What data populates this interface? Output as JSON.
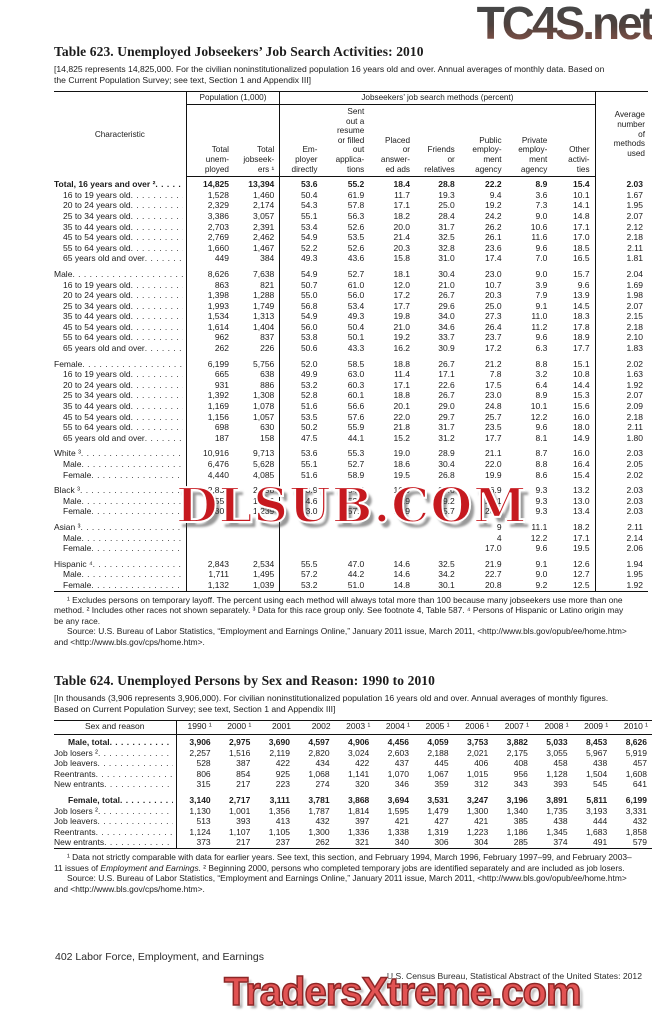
{
  "watermarks": {
    "top": "TC4S.net",
    "middle": "DLSUB.COM",
    "bottom": "TradersXtreme.com",
    "top_color_start": "#474747",
    "top_color_end": "#7d4f45",
    "middle_color": "#c6191f",
    "bottom_color": "#e25353"
  },
  "table623": {
    "title": "Table 623. Unemployed Jobseekers’ Job Search Activities: 2010",
    "headnote": "[14,825 represents 14,825,000. For the civilian noninstitutionalized population 16 years old and over. Annual averages of monthly data. Based on the Current Population Survey; see text, Section 1 and Appendix III]",
    "boxhead": {
      "stub": "Characteristic",
      "population_group": "Population (1,000)",
      "methods_group": "Jobseekers’ job search methods (percent)",
      "average": "Average|number|of|methods|used",
      "columns": [
        "Total|unem-|ployed",
        "Total|jobseek-|ers ¹",
        "Em-|ployer|directly",
        "Sent|out a|resume|or filled|out|applica-|tions",
        "Placed|or|answer-|ed ads",
        "Friends|or|relatives",
        "Public|employ-|ment|agency",
        "Private|employ-|ment|agency",
        "Other|activi-|ties"
      ]
    },
    "rows": [
      {
        "label": "Total, 16 years and over ²",
        "bold": true,
        "values": [
          "14,825",
          "13,394",
          "53.6",
          "55.2",
          "18.4",
          "28.8",
          "22.2",
          "8.9",
          "15.4",
          "2.03"
        ]
      },
      {
        "label": "16 to 19 years old",
        "indent": true,
        "values": [
          "1,528",
          "1,460",
          "50.4",
          "61.9",
          "11.7",
          "19.3",
          "9.4",
          "3.6",
          "10.1",
          "1.67"
        ]
      },
      {
        "label": "20 to 24 years old",
        "indent": true,
        "values": [
          "2,329",
          "2,174",
          "54.3",
          "57.8",
          "17.1",
          "25.0",
          "19.2",
          "7.3",
          "14.1",
          "1.95"
        ]
      },
      {
        "label": "25 to 34 years old",
        "indent": true,
        "values": [
          "3,386",
          "3,057",
          "55.1",
          "56.3",
          "18.2",
          "28.4",
          "24.2",
          "9.0",
          "14.8",
          "2.07"
        ]
      },
      {
        "label": "35 to 44 years old",
        "indent": true,
        "values": [
          "2,703",
          "2,391",
          "53.4",
          "52.6",
          "20.0",
          "31.7",
          "26.2",
          "10.6",
          "17.1",
          "2.12"
        ]
      },
      {
        "label": "45 to 54 years old",
        "indent": true,
        "values": [
          "2,769",
          "2,462",
          "54.9",
          "53.5",
          "21.4",
          "32.5",
          "26.1",
          "11.6",
          "17.0",
          "2.18"
        ]
      },
      {
        "label": "55 to 64 years old",
        "indent": true,
        "values": [
          "1,660",
          "1,467",
          "52.2",
          "52.6",
          "20.3",
          "32.8",
          "23.6",
          "9.6",
          "18.5",
          "2.11"
        ]
      },
      {
        "label": "65 years old and over",
        "indent": true,
        "values": [
          "449",
          "384",
          "49.3",
          "43.6",
          "15.8",
          "31.0",
          "17.4",
          "7.0",
          "16.5",
          "1.81"
        ]
      },
      {
        "label": "Male",
        "group": true,
        "values": [
          "8,626",
          "7,638",
          "54.9",
          "52.7",
          "18.1",
          "30.4",
          "23.0",
          "9.0",
          "15.7",
          "2.04"
        ]
      },
      {
        "label": "16 to 19 years old",
        "indent": true,
        "values": [
          "863",
          "821",
          "50.7",
          "61.0",
          "12.0",
          "21.0",
          "10.7",
          "3.9",
          "9.6",
          "1.69"
        ]
      },
      {
        "label": "20 to 24 years old",
        "indent": true,
        "values": [
          "1,398",
          "1,288",
          "55.0",
          "56.0",
          "17.2",
          "26.7",
          "20.3",
          "7.9",
          "13.9",
          "1.98"
        ]
      },
      {
        "label": "25 to 34 years old",
        "indent": true,
        "values": [
          "1,993",
          "1,749",
          "56.8",
          "53.4",
          "17.7",
          "29.6",
          "25.0",
          "9.1",
          "14.5",
          "2.07"
        ]
      },
      {
        "label": "35 to 44 years old",
        "indent": true,
        "values": [
          "1,534",
          "1,313",
          "54.9",
          "49.3",
          "19.8",
          "34.0",
          "27.3",
          "11.0",
          "18.3",
          "2.15"
        ]
      },
      {
        "label": "45 to 54 years old",
        "indent": true,
        "values": [
          "1,614",
          "1,404",
          "56.0",
          "50.4",
          "21.0",
          "34.6",
          "26.4",
          "11.2",
          "17.8",
          "2.18"
        ]
      },
      {
        "label": "55 to 64 years old",
        "indent": true,
        "values": [
          "962",
          "837",
          "53.8",
          "50.1",
          "19.2",
          "33.7",
          "23.7",
          "9.6",
          "18.9",
          "2.10"
        ]
      },
      {
        "label": "65 years old and over",
        "indent": true,
        "values": [
          "262",
          "226",
          "50.6",
          "43.3",
          "16.2",
          "30.9",
          "17.2",
          "6.3",
          "17.7",
          "1.83"
        ]
      },
      {
        "label": "Female",
        "group": true,
        "values": [
          "6,199",
          "5,756",
          "52.0",
          "58.5",
          "18.8",
          "26.7",
          "21.2",
          "8.8",
          "15.1",
          "2.02"
        ]
      },
      {
        "label": "16 to 19 years old",
        "indent": true,
        "values": [
          "665",
          "638",
          "49.9",
          "63.0",
          "11.4",
          "17.1",
          "7.8",
          "3.2",
          "10.8",
          "1.63"
        ]
      },
      {
        "label": "20 to 24 years old",
        "indent": true,
        "values": [
          "931",
          "886",
          "53.2",
          "60.3",
          "17.1",
          "22.6",
          "17.5",
          "6.4",
          "14.4",
          "1.92"
        ]
      },
      {
        "label": "25 to 34 years old",
        "indent": true,
        "values": [
          "1,392",
          "1,308",
          "52.8",
          "60.1",
          "18.8",
          "26.7",
          "23.0",
          "8.9",
          "15.3",
          "2.07"
        ]
      },
      {
        "label": "35 to 44 years old",
        "indent": true,
        "values": [
          "1,169",
          "1,078",
          "51.6",
          "56.6",
          "20.1",
          "29.0",
          "24.8",
          "10.1",
          "15.6",
          "2.09"
        ]
      },
      {
        "label": "45 to 54 years old",
        "indent": true,
        "values": [
          "1,156",
          "1,057",
          "53.5",
          "57.6",
          "22.0",
          "29.7",
          "25.7",
          "12.2",
          "16.0",
          "2.18"
        ]
      },
      {
        "label": "55 to 64 years old",
        "indent": true,
        "values": [
          "698",
          "630",
          "50.2",
          "55.9",
          "21.8",
          "31.7",
          "23.5",
          "9.6",
          "18.0",
          "2.11"
        ]
      },
      {
        "label": "65 years old and over",
        "indent": true,
        "values": [
          "187",
          "158",
          "47.5",
          "44.1",
          "15.2",
          "31.2",
          "17.7",
          "8.1",
          "14.9",
          "1.80"
        ]
      },
      {
        "label": "White ³",
        "group": true,
        "values": [
          "10,916",
          "9,713",
          "53.6",
          "55.3",
          "19.0",
          "28.9",
          "21.1",
          "8.7",
          "16.0",
          "2.03"
        ]
      },
      {
        "label": "Male",
        "indent": true,
        "values": [
          "6,476",
          "5,628",
          "55.1",
          "52.7",
          "18.6",
          "30.4",
          "22.0",
          "8.8",
          "16.4",
          "2.05"
        ]
      },
      {
        "label": "Female",
        "indent": true,
        "values": [
          "4,440",
          "4,085",
          "51.6",
          "58.9",
          "19.5",
          "26.8",
          "19.9",
          "8.6",
          "15.4",
          "2.02"
        ]
      },
      {
        "label": "Black ³",
        "group": true,
        "values": [
          "2,852",
          "2,698",
          "53.9",
          "54.4",
          "16.9",
          "27.6",
          "26.9",
          "9.3",
          "13.2",
          "2.03"
        ]
      },
      {
        "label": "Male",
        "indent": true,
        "values": [
          "1,550",
          "1,459",
          "54.6",
          "52.0",
          "16.9",
          "29.2",
          "27.1",
          "9.3",
          "13.0",
          "2.03"
        ]
      },
      {
        "label": "Female",
        "indent": true,
        "values": [
          "1,302",
          "1,239",
          "53.0",
          "57.2",
          "16.9",
          "25.7",
          "26.7",
          "9.3",
          "13.4",
          "2.03"
        ]
      },
      {
        "label": "Asian ³",
        "group": true,
        "values": [
          "",
          "",
          "",
          "",
          "",
          "",
          "9",
          "11.1",
          "18.2",
          "2.11"
        ]
      },
      {
        "label": "Male",
        "indent": true,
        "values": [
          "",
          "",
          "",
          "",
          "",
          "",
          "4",
          "12.2",
          "17.1",
          "2.14"
        ]
      },
      {
        "label": "Female",
        "indent": true,
        "values": [
          "",
          "",
          "",
          "",
          "",
          "",
          "17.0",
          "9.6",
          "19.5",
          "2.06"
        ]
      },
      {
        "label": "Hispanic ⁴",
        "group": true,
        "values": [
          "2,843",
          "2,534",
          "55.5",
          "47.0",
          "14.6",
          "32.5",
          "21.9",
          "9.1",
          "12.6",
          "1.94"
        ]
      },
      {
        "label": "Male",
        "indent": true,
        "values": [
          "1,711",
          "1,495",
          "57.2",
          "44.2",
          "14.6",
          "34.2",
          "22.7",
          "9.0",
          "12.7",
          "1.95"
        ]
      },
      {
        "label": "Female",
        "indent": true,
        "values": [
          "1,132",
          "1,039",
          "53.2",
          "51.0",
          "14.8",
          "30.1",
          "20.8",
          "9.2",
          "12.5",
          "1.92"
        ]
      }
    ],
    "footnote_segments": [
      {
        "text": "¹ Excludes persons on temporary layoff. The percent using each method will always total more than 100 because many jobseekers use more than one  method. ² Includes other races not shown separately. ³ Data for this race group only. See footnote 4, Table 587. ⁴ Persons of Hispanic or Latino origin may be any race."
      }
    ],
    "source_segments": [
      {
        "text": "Source: U.S. Bureau of Labor Statistics, “Employment and Earnings Online,” January 2011 issue, March 2011, <http://www.bls.gov/opub/ee/home.htm> and <http://www.bls.gov/cps/home.htm>."
      }
    ]
  },
  "table624": {
    "title": "Table 624. Unemployed Persons by Sex and Reason: 1990 to 2010",
    "headnote": "[In thousands (3,906 represents 3,906,000). For civilian noninstitutionalized population 16 years old and over. Annual averages of monthly figures. Based on Current Population Survey; see text, Section 1 and Appendix III]",
    "stub_header": "Sex and reason",
    "columns": [
      "1990 ¹",
      "2000 ¹",
      "2001",
      "2002",
      "2003 ¹",
      "2004 ¹",
      "2005 ¹",
      "2006 ¹",
      "2007 ¹",
      "2008 ¹",
      "2009 ¹",
      "2010 ¹"
    ],
    "rows": [
      {
        "label": "Male, total",
        "bold": true,
        "total": true,
        "values": [
          "3,906",
          "2,975",
          "3,690",
          "4,597",
          "4,906",
          "4,456",
          "4,059",
          "3,753",
          "3,882",
          "5,033",
          "8,453",
          "8,626"
        ]
      },
      {
        "label": "Job losers ²",
        "values": [
          "2,257",
          "1,516",
          "2,119",
          "2,820",
          "3,024",
          "2,603",
          "2,188",
          "2,021",
          "2,175",
          "3,055",
          "5,967",
          "5,919"
        ]
      },
      {
        "label": "Job leavers",
        "values": [
          "528",
          "387",
          "422",
          "434",
          "422",
          "437",
          "445",
          "406",
          "408",
          "458",
          "438",
          "457"
        ]
      },
      {
        "label": "Reentrants",
        "values": [
          "806",
          "854",
          "925",
          "1,068",
          "1,141",
          "1,070",
          "1,067",
          "1,015",
          "956",
          "1,128",
          "1,504",
          "1,608"
        ]
      },
      {
        "label": "New entrants",
        "values": [
          "315",
          "217",
          "223",
          "274",
          "320",
          "346",
          "359",
          "312",
          "343",
          "393",
          "545",
          "641"
        ]
      },
      {
        "label": "Female, total",
        "bold": true,
        "total": true,
        "group": true,
        "values": [
          "3,140",
          "2,717",
          "3,111",
          "3,781",
          "3,868",
          "3,694",
          "3,531",
          "3,247",
          "3,196",
          "3,891",
          "5,811",
          "6,199"
        ]
      },
      {
        "label": "Job losers ²",
        "values": [
          "1,130",
          "1,001",
          "1,356",
          "1,787",
          "1,814",
          "1,595",
          "1,479",
          "1,300",
          "1,340",
          "1,735",
          "3,193",
          "3,331"
        ]
      },
      {
        "label": "Job leavers",
        "values": [
          "513",
          "393",
          "413",
          "432",
          "397",
          "421",
          "427",
          "421",
          "385",
          "438",
          "444",
          "432"
        ]
      },
      {
        "label": "Reentrants",
        "values": [
          "1,124",
          "1,107",
          "1,105",
          "1,300",
          "1,336",
          "1,338",
          "1,319",
          "1,223",
          "1,186",
          "1,345",
          "1,683",
          "1,858"
        ]
      },
      {
        "label": "New entrants",
        "values": [
          "373",
          "217",
          "237",
          "262",
          "321",
          "340",
          "306",
          "304",
          "285",
          "374",
          "491",
          "579"
        ]
      }
    ],
    "footnote_segments": [
      {
        "text": "¹ Data not strictly comparable with data for earlier years. See text, this section, and February 1994, March 1996, February 1997–99, and February 2003–11 issues of "
      },
      {
        "text": "Employment and Earnings.",
        "italic": true
      },
      {
        "text": " ² Beginning 2000, persons who completed temporary jobs are identified separately and are included as job losers."
      }
    ],
    "source_segments": [
      {
        "text": "Source: U.S. Bureau of Labor Statistics, “Employment and Earnings Online,” January 2011 issue, March 2011, <http://www.bls.gov/opub/ee/home.htm> and <http://www.bls.gov/cps/home.htm>."
      }
    ]
  },
  "footer": {
    "left": "402  Labor Force, Employment, and Earnings",
    "right": "U.S. Census Bureau, Statistical Abstract of the United States: 2012"
  }
}
